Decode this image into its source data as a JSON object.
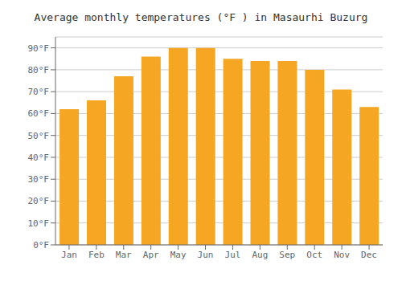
{
  "chart_data": {
    "type": "bar",
    "title": "Average monthly temperatures (°F ) in Masaurhi Buzurg",
    "categories": [
      "Jan",
      "Feb",
      "Mar",
      "Apr",
      "May",
      "Jun",
      "Jul",
      "Aug",
      "Sep",
      "Oct",
      "Nov",
      "Dec"
    ],
    "values": [
      62,
      66,
      77,
      86,
      90,
      90,
      85,
      84,
      84,
      80,
      71,
      63
    ],
    "color": "#F5A623",
    "ylim": [
      0,
      95
    ],
    "yticks": [
      {
        "value": 0,
        "label": "0°F"
      },
      {
        "value": 10,
        "label": "10°F"
      },
      {
        "value": 20,
        "label": "20°F"
      },
      {
        "value": 30,
        "label": "30°F"
      },
      {
        "value": 40,
        "label": "40°F"
      },
      {
        "value": 50,
        "label": "50°F"
      },
      {
        "value": 60,
        "label": "60°F"
      },
      {
        "value": 70,
        "label": "70°F"
      },
      {
        "value": 80,
        "label": "80°F"
      },
      {
        "value": 90,
        "label": "90°F"
      }
    ],
    "grid": true
  }
}
